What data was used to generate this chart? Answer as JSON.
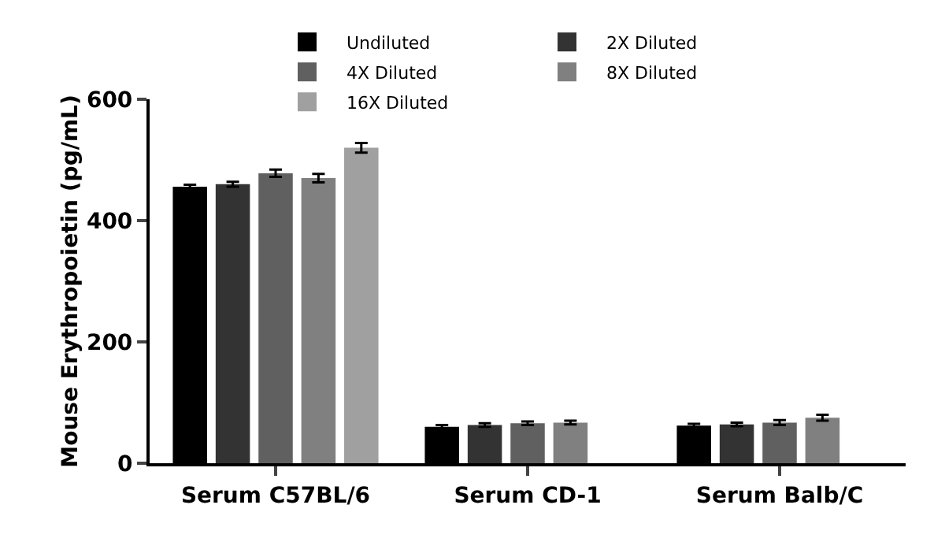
{
  "chart_data": {
    "type": "bar",
    "ylabel": "Mouse Erythropoietin (pg/mL)",
    "categories": [
      "Serum C57BL/6",
      "Serum CD-1",
      "Serum Balb/C"
    ],
    "series": [
      {
        "name": "Undiluted",
        "color": "#000000",
        "values": [
          456,
          60,
          62
        ],
        "errors": [
          3,
          3,
          3
        ]
      },
      {
        "name": "2X Diluted",
        "color": "#333333",
        "values": [
          460,
          63,
          64
        ],
        "errors": [
          4,
          3,
          3
        ]
      },
      {
        "name": "4X Diluted",
        "color": "#606060",
        "values": [
          478,
          66,
          67
        ],
        "errors": [
          6,
          3,
          4
        ]
      },
      {
        "name": "8X Diluted",
        "color": "#808080",
        "values": [
          470,
          67,
          75
        ],
        "errors": [
          7,
          3,
          5
        ]
      },
      {
        "name": "16X Diluted",
        "color": "#a0a0a0",
        "values": [
          520,
          null,
          null
        ],
        "errors": [
          8,
          null,
          null
        ]
      }
    ],
    "ylim": [
      0,
      600
    ],
    "yticks": [
      0,
      200,
      400,
      600
    ],
    "grid": false,
    "legend": "top"
  }
}
